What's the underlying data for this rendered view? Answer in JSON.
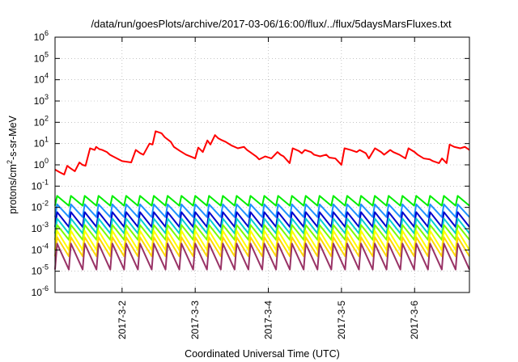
{
  "chart_data": {
    "type": "line",
    "title": "/data/run/goesPlots/archive/2017-03-06/16:00/flux/../flux/5daysMarsFluxes.txt",
    "xlabel": "Coordinated Universal Time (UTC)",
    "ylabel": {
      "prefix": "protons/cm",
      "sup": "2",
      "suffix": "-s-sr-MeV"
    },
    "y_scale": "log",
    "ylim": [
      1e-06,
      1000000.0
    ],
    "y_ticks": [
      {
        "value": -6,
        "base": "10",
        "exp": "-6"
      },
      {
        "value": -5,
        "base": "10",
        "exp": "-5"
      },
      {
        "value": -4,
        "base": "10",
        "exp": "-4"
      },
      {
        "value": -3,
        "base": "10",
        "exp": "-3"
      },
      {
        "value": -2,
        "base": "10",
        "exp": "-2"
      },
      {
        "value": -1,
        "base": "10",
        "exp": "-1"
      },
      {
        "value": 0,
        "base": "10",
        "exp": "0"
      },
      {
        "value": 1,
        "base": "10",
        "exp": "1"
      },
      {
        "value": 2,
        "base": "10",
        "exp": "2"
      },
      {
        "value": 3,
        "base": "10",
        "exp": "3"
      },
      {
        "value": 4,
        "base": "10",
        "exp": "4"
      },
      {
        "value": 5,
        "base": "10",
        "exp": "5"
      },
      {
        "value": 6,
        "base": "10",
        "exp": "6"
      }
    ],
    "xlim": [
      "2017-03-01T02:00",
      "2017-03-06T18:00"
    ],
    "x_ticks": [
      {
        "value": "2017-03-02T00:00",
        "label": "2017-3-2"
      },
      {
        "value": "2017-03-03T00:00",
        "label": "2017-3-3"
      },
      {
        "value": "2017-03-04T00:00",
        "label": "2017-3-4"
      },
      {
        "value": "2017-03-05T00:00",
        "label": "2017-3-5"
      },
      {
        "value": "2017-03-06T00:00",
        "label": "2017-3-6"
      }
    ],
    "grid": true,
    "series": [
      {
        "color": "#ff0000",
        "pattern": "irregular",
        "x": [
          "2017-03-01T02:00",
          "2017-03-01T03:30",
          "2017-03-01T05:00",
          "2017-03-01T06:00",
          "2017-03-01T07:00",
          "2017-03-01T08:30",
          "2017-03-01T10:00",
          "2017-03-01T11:00",
          "2017-03-01T12:00",
          "2017-03-01T13:30",
          "2017-03-01T15:00",
          "2017-03-01T15:30",
          "2017-03-01T16:30",
          "2017-03-01T17:30",
          "2017-03-01T19:00",
          "2017-03-01T20:00",
          "2017-03-01T21:00",
          "2017-03-02T00:00",
          "2017-03-02T03:00",
          "2017-03-02T04:30",
          "2017-03-02T06:00",
          "2017-03-02T07:00",
          "2017-03-02T09:00",
          "2017-03-02T10:00",
          "2017-03-02T11:00",
          "2017-03-02T12:30",
          "2017-03-02T13:00",
          "2017-03-02T14:00",
          "2017-03-02T16:00",
          "2017-03-02T17:00",
          "2017-03-02T19:00",
          "2017-03-02T21:00",
          "2017-03-02T23:00",
          "2017-03-03T00:00",
          "2017-03-03T01:00",
          "2017-03-03T02:30",
          "2017-03-03T04:00",
          "2017-03-03T05:00",
          "2017-03-03T06:30",
          "2017-03-03T07:30",
          "2017-03-03T08:30",
          "2017-03-03T10:00",
          "2017-03-03T12:00",
          "2017-03-03T14:00",
          "2017-03-03T16:00",
          "2017-03-03T17:00",
          "2017-03-03T18:00",
          "2017-03-03T20:00",
          "2017-03-03T21:00",
          "2017-03-03T23:00",
          "2017-03-04T01:00",
          "2017-03-04T03:00",
          "2017-03-04T04:00",
          "2017-03-04T05:00",
          "2017-03-04T07:00",
          "2017-03-04T08:00",
          "2017-03-04T10:00",
          "2017-03-04T11:00",
          "2017-03-04T12:00",
          "2017-03-04T14:00",
          "2017-03-04T15:00",
          "2017-03-04T17:00",
          "2017-03-04T19:00",
          "2017-03-04T20:00",
          "2017-03-04T22:00",
          "2017-03-05T00:00",
          "2017-03-05T01:00",
          "2017-03-05T03:00",
          "2017-03-05T05:00",
          "2017-03-05T06:00",
          "2017-03-05T08:00",
          "2017-03-05T09:00",
          "2017-03-05T11:00",
          "2017-03-05T13:00",
          "2017-03-05T14:00",
          "2017-03-05T16:00",
          "2017-03-05T17:00",
          "2017-03-05T19:00",
          "2017-03-05T21:00",
          "2017-03-05T22:00",
          "2017-03-06T00:00",
          "2017-03-06T01:00",
          "2017-03-06T03:00",
          "2017-03-06T05:00",
          "2017-03-06T06:00",
          "2017-03-06T08:00",
          "2017-03-06T09:00",
          "2017-03-06T10:30",
          "2017-03-06T11:30",
          "2017-03-06T13:00",
          "2017-03-06T15:00",
          "2017-03-06T16:30",
          "2017-03-06T18:00"
        ],
        "y": [
          0.6,
          0.45,
          0.35,
          0.9,
          0.7,
          0.5,
          1.3,
          1.0,
          0.9,
          6.0,
          5.0,
          7.0,
          5.5,
          5.0,
          4.0,
          3.0,
          2.5,
          1.5,
          1.3,
          5.0,
          3.5,
          3.0,
          10.0,
          9.0,
          38.0,
          32.0,
          30.0,
          20.0,
          12.0,
          7.0,
          4.5,
          3.0,
          2.3,
          2.0,
          6.5,
          4.0,
          14.0,
          9.0,
          25.0,
          18.0,
          15.0,
          12.0,
          8.0,
          6.0,
          7.0,
          5.0,
          4.0,
          2.5,
          1.8,
          2.5,
          2.0,
          4.0,
          3.0,
          2.5,
          1.2,
          6.0,
          4.5,
          3.5,
          5.0,
          4.0,
          3.0,
          2.5,
          3.0,
          2.2,
          2.0,
          1.0,
          6.0,
          5.0,
          4.0,
          5.0,
          3.5,
          2.0,
          6.0,
          4.0,
          3.0,
          5.0,
          4.0,
          3.0,
          2.0,
          6.0,
          4.0,
          3.0,
          2.0,
          1.8,
          1.5,
          1.2,
          2.0,
          1.2,
          9.0,
          7.0,
          6.0,
          7.0,
          5.0
        ]
      },
      {
        "color": "#00ee00",
        "pattern": "sawtooth",
        "cycles": 30,
        "peak": 0.035,
        "trough": 0.012
      },
      {
        "color": "#1e90ff",
        "pattern": "sawtooth",
        "cycles": 30,
        "peak": 0.014,
        "trough": 0.0035
      },
      {
        "color": "#0000cd",
        "pattern": "sawtooth",
        "cycles": 30,
        "peak": 0.006,
        "trough": 0.0012
      },
      {
        "color": "#00ced1",
        "pattern": "sawtooth",
        "cycles": 30,
        "peak": 0.003,
        "trough": 0.0006
      },
      {
        "color": "#7cfc00",
        "pattern": "sawtooth",
        "cycles": 30,
        "peak": 0.0015,
        "trough": 0.0003
      },
      {
        "color": "#ffff00",
        "pattern": "sawtooth",
        "cycles": 30,
        "peak": 0.0008,
        "trough": 0.0001
      },
      {
        "color": "#ffd700",
        "pattern": "sawtooth",
        "cycles": 30,
        "peak": 0.0004,
        "trough": 5e-05
      },
      {
        "color": "#993366",
        "pattern": "sawtooth",
        "cycles": 30,
        "peak": 0.0002,
        "trough": 1.2e-05
      }
    ]
  }
}
